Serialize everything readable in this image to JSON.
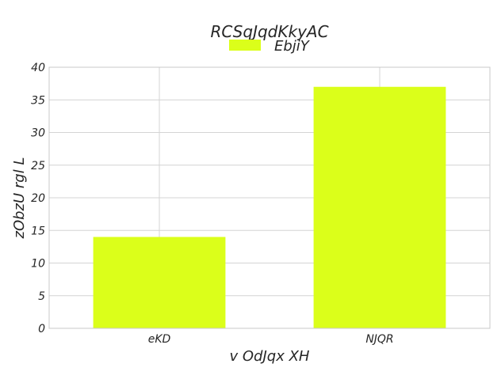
{
  "chart_data": {
    "type": "bar",
    "title": "RCSqJqdKkyAC",
    "xlabel": "v OdJqx XH",
    "ylabel": "zObzU rgl L",
    "categories": [
      "eKD",
      "NJQR"
    ],
    "series": [
      {
        "name": "EbjiY",
        "values": [
          14,
          37
        ],
        "color": "#dbff1a"
      }
    ],
    "ylim": [
      0,
      40
    ],
    "yticks": [
      0,
      5,
      10,
      15,
      20,
      25,
      30,
      35,
      40
    ],
    "grid": true,
    "legend_position": "top-center"
  }
}
